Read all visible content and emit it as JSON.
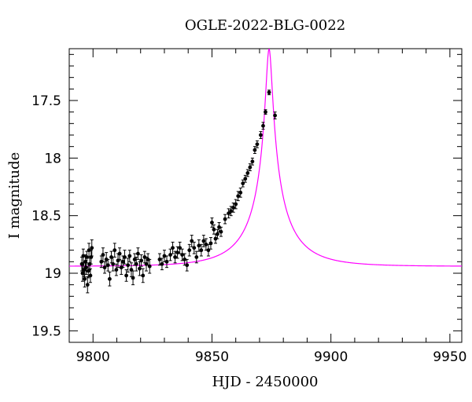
{
  "chart_data": {
    "type": "scatter",
    "title": "OGLE-2022-BLG-0022",
    "xlabel": "HJD - 2450000",
    "ylabel": "I magnitude",
    "xlim": [
      9790,
      9955
    ],
    "ylim": [
      19.6,
      17.05
    ],
    "y_inverted": true,
    "x_ticks": [
      9800,
      9850,
      9900,
      9950
    ],
    "y_ticks": [
      17.5,
      18,
      18.5,
      19,
      19.5
    ],
    "x_tick_labels": [
      "9800",
      "9850",
      "9900",
      "9950"
    ],
    "y_tick_labels": [
      "17.5",
      "18",
      "18.5",
      "19",
      "19.5"
    ],
    "x_minor_step": 10,
    "y_minor_step": 0.1,
    "grid": false,
    "legend": "none",
    "colors": {
      "data": "#000000",
      "model": "#ff00ff"
    },
    "series": [
      {
        "kind": "data-with-errorbars",
        "points": [
          [
            9795.3,
            18.92,
            0.06
          ],
          [
            9795.6,
            19.0,
            0.07
          ],
          [
            9795.9,
            18.85,
            0.06
          ],
          [
            9796.2,
            18.97,
            0.06
          ],
          [
            9796.5,
            19.05,
            0.07
          ],
          [
            9796.8,
            18.9,
            0.06
          ],
          [
            9797.1,
            18.95,
            0.06
          ],
          [
            9797.4,
            18.86,
            0.05
          ],
          [
            9797.7,
            19.1,
            0.07
          ],
          [
            9798.0,
            18.98,
            0.06
          ],
          [
            9798.3,
            18.8,
            0.06
          ],
          [
            9798.6,
            18.92,
            0.05
          ],
          [
            9798.9,
            19.02,
            0.06
          ],
          [
            9799.2,
            18.86,
            0.06
          ],
          [
            9799.5,
            18.78,
            0.07
          ],
          [
            9803.5,
            18.9,
            0.05
          ],
          [
            9804.2,
            18.84,
            0.06
          ],
          [
            9804.9,
            18.95,
            0.05
          ],
          [
            9805.6,
            18.88,
            0.06
          ],
          [
            9806.3,
            18.93,
            0.05
          ],
          [
            9807.0,
            19.05,
            0.06
          ],
          [
            9807.7,
            18.86,
            0.05
          ],
          [
            9808.4,
            18.92,
            0.06
          ],
          [
            9809.1,
            18.8,
            0.06
          ],
          [
            9809.8,
            18.97,
            0.05
          ],
          [
            9810.5,
            18.89,
            0.06
          ],
          [
            9811.2,
            18.83,
            0.05
          ],
          [
            9811.9,
            18.95,
            0.06
          ],
          [
            9812.6,
            18.9,
            0.05
          ],
          [
            9813.3,
            18.86,
            0.06
          ],
          [
            9814.0,
            19.02,
            0.05
          ],
          [
            9814.7,
            18.93,
            0.06
          ],
          [
            9815.4,
            18.85,
            0.05
          ],
          [
            9816.1,
            18.97,
            0.06
          ],
          [
            9816.8,
            19.04,
            0.06
          ],
          [
            9817.5,
            18.88,
            0.05
          ],
          [
            9818.2,
            18.92,
            0.06
          ],
          [
            9818.9,
            18.83,
            0.05
          ],
          [
            9819.6,
            18.96,
            0.06
          ],
          [
            9820.3,
            18.89,
            0.05
          ],
          [
            9821.0,
            19.02,
            0.06
          ],
          [
            9821.7,
            18.86,
            0.05
          ],
          [
            9822.4,
            18.92,
            0.06
          ],
          [
            9823.1,
            18.88,
            0.05
          ],
          [
            9823.8,
            18.94,
            0.06
          ],
          [
            9828.0,
            18.88,
            0.05
          ],
          [
            9829.0,
            18.92,
            0.05
          ],
          [
            9830.0,
            18.85,
            0.05
          ],
          [
            9831.0,
            18.9,
            0.05
          ],
          [
            9832.5,
            18.84,
            0.05
          ],
          [
            9833.5,
            18.78,
            0.05
          ],
          [
            9834.5,
            18.86,
            0.05
          ],
          [
            9835.5,
            18.82,
            0.05
          ],
          [
            9836.5,
            18.78,
            0.05
          ],
          [
            9837.5,
            18.84,
            0.05
          ],
          [
            9838.5,
            18.88,
            0.05
          ],
          [
            9839.5,
            18.93,
            0.05
          ],
          [
            9840.5,
            18.8,
            0.05
          ],
          [
            9841.5,
            18.72,
            0.05
          ],
          [
            9842.5,
            18.78,
            0.05
          ],
          [
            9843.5,
            18.86,
            0.05
          ],
          [
            9844.5,
            18.76,
            0.05
          ],
          [
            9845.5,
            18.8,
            0.05
          ],
          [
            9846.5,
            18.72,
            0.05
          ],
          [
            9847.5,
            18.75,
            0.05
          ],
          [
            9848.5,
            18.8,
            0.05
          ],
          [
            9849.5,
            18.74,
            0.05
          ],
          [
            9850.0,
            18.56,
            0.04
          ],
          [
            9850.8,
            18.62,
            0.04
          ],
          [
            9851.5,
            18.7,
            0.04
          ],
          [
            9852.3,
            18.66,
            0.04
          ],
          [
            9853.0,
            18.6,
            0.04
          ],
          [
            9853.8,
            18.64,
            0.04
          ],
          [
            9855.5,
            18.53,
            0.04
          ],
          [
            9857.0,
            18.48,
            0.04
          ],
          [
            9858.0,
            18.46,
            0.04
          ],
          [
            9859.0,
            18.43,
            0.04
          ],
          [
            9860.0,
            18.4,
            0.04
          ],
          [
            9861.0,
            18.33,
            0.04
          ],
          [
            9862.0,
            18.3,
            0.04
          ],
          [
            9863.0,
            18.22,
            0.03
          ],
          [
            9864.0,
            18.18,
            0.03
          ],
          [
            9865.0,
            18.13,
            0.03
          ],
          [
            9866.0,
            18.08,
            0.03
          ],
          [
            9867.0,
            18.03,
            0.03
          ],
          [
            9868.0,
            17.93,
            0.03
          ],
          [
            9869.0,
            17.88,
            0.03
          ],
          [
            9870.5,
            17.8,
            0.03
          ],
          [
            9871.5,
            17.72,
            0.03
          ],
          [
            9872.5,
            17.6,
            0.02
          ],
          [
            9874.0,
            17.43,
            0.02
          ],
          [
            9876.5,
            17.63,
            0.03
          ]
        ]
      },
      {
        "kind": "model-curve",
        "model": {
          "t0": 9874.0,
          "tE": 20.0,
          "u0": 0.062,
          "baseline_mag": 18.94,
          "blending_fraction": 0.31
        },
        "x_range": [
          9790,
          9955
        ]
      }
    ]
  }
}
